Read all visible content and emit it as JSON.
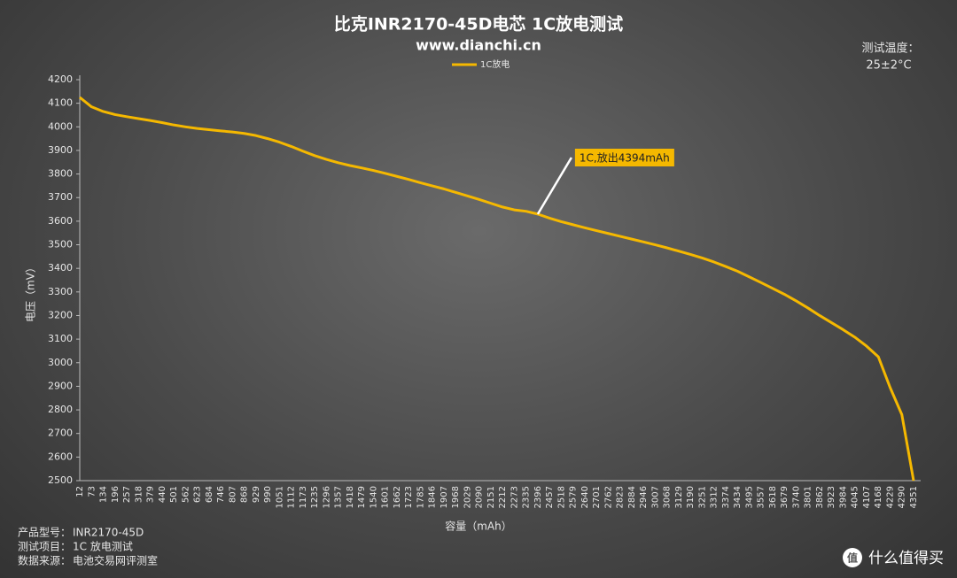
{
  "chart_data": {
    "type": "line",
    "title": "比克INR2170-45D电芯 1C放电测试",
    "subtitle": "www.dianchi.cn",
    "x_label": "容量（mAh）",
    "y_label": "电压（mV）",
    "categories": [
      "12",
      "73",
      "134",
      "196",
      "257",
      "318",
      "379",
      "440",
      "501",
      "562",
      "623",
      "684",
      "746",
      "807",
      "868",
      "929",
      "990",
      "1051",
      "1112",
      "1173",
      "1235",
      "1296",
      "1357",
      "1418",
      "1479",
      "1540",
      "1601",
      "1662",
      "1723",
      "1785",
      "1846",
      "1907",
      "1968",
      "2029",
      "2090",
      "2151",
      "2212",
      "2273",
      "2335",
      "2396",
      "2457",
      "2518",
      "2579",
      "2640",
      "2701",
      "2762",
      "2823",
      "2884",
      "2946",
      "3007",
      "3068",
      "3129",
      "3190",
      "3251",
      "3312",
      "3374",
      "3434",
      "3495",
      "3557",
      "3618",
      "3679",
      "3740",
      "3801",
      "3862",
      "3923",
      "3984",
      "4045",
      "4107",
      "4168",
      "4229",
      "4290",
      "4351"
    ],
    "series": [
      {
        "name": "1C放电",
        "color": "#f5b800",
        "values": [
          4125,
          4085,
          4065,
          4052,
          4043,
          4035,
          4027,
          4018,
          4008,
          4000,
          3993,
          3988,
          3983,
          3978,
          3972,
          3963,
          3950,
          3935,
          3917,
          3897,
          3878,
          3862,
          3848,
          3836,
          3826,
          3815,
          3803,
          3790,
          3777,
          3763,
          3750,
          3737,
          3722,
          3707,
          3692,
          3676,
          3660,
          3648,
          3642,
          3630,
          3613,
          3598,
          3585,
          3572,
          3560,
          3548,
          3536,
          3524,
          3512,
          3500,
          3487,
          3473,
          3459,
          3444,
          3427,
          3408,
          3388,
          3364,
          3340,
          3315,
          3290,
          3262,
          3232,
          3200,
          3170,
          3140,
          3108,
          3070,
          3025,
          2895,
          2780,
          2500
        ]
      }
    ],
    "ylim": [
      2500,
      4200
    ],
    "yticks": [
      2500,
      2600,
      2700,
      2800,
      2900,
      3000,
      3100,
      3200,
      3300,
      3400,
      3500,
      3600,
      3700,
      3800,
      3900,
      4000,
      4100,
      4200
    ],
    "annotation": "1C,放出4394mAh",
    "notes": [
      "测试温度：",
      "25±2°C"
    ],
    "footer": [
      [
        "产品型号：",
        "INR2170-45D"
      ],
      [
        "测试项目：",
        "1C 放电测试"
      ],
      [
        "数据来源：",
        "电池交易网评测室"
      ]
    ],
    "watermark_icon": "值",
    "watermark": "什么值得买"
  }
}
